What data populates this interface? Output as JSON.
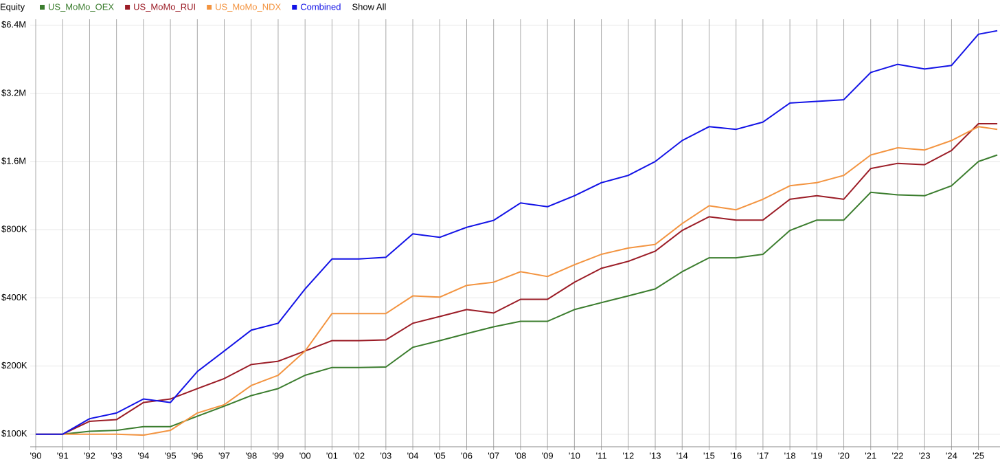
{
  "chart_data": {
    "type": "line",
    "ylabel": "Equity",
    "show_all_label": "Show All",
    "log_scale": true,
    "grid": true,
    "legend": "top",
    "x": [
      1990,
      1991,
      1992,
      1993,
      1994,
      1995,
      1996,
      1997,
      1998,
      1999,
      2000,
      2001,
      2002,
      2003,
      2004,
      2005,
      2006,
      2007,
      2008,
      2009,
      2010,
      2011,
      2012,
      2013,
      2014,
      2015,
      2016,
      2017,
      2018,
      2019,
      2020,
      2021,
      2022,
      2023,
      2024,
      2025,
      2025.7
    ],
    "xlim": [
      1990,
      2025.8
    ],
    "xticks": [
      {
        "value": 1990,
        "label": "'90"
      },
      {
        "value": 1991,
        "label": "'91"
      },
      {
        "value": 1992,
        "label": "'92"
      },
      {
        "value": 1993,
        "label": "'93"
      },
      {
        "value": 1994,
        "label": "'94"
      },
      {
        "value": 1995,
        "label": "'95"
      },
      {
        "value": 1996,
        "label": "'96"
      },
      {
        "value": 1997,
        "label": "'97"
      },
      {
        "value": 1998,
        "label": "'98"
      },
      {
        "value": 1999,
        "label": "'99"
      },
      {
        "value": 2000,
        "label": "'00"
      },
      {
        "value": 2001,
        "label": "'01"
      },
      {
        "value": 2002,
        "label": "'02"
      },
      {
        "value": 2003,
        "label": "'03"
      },
      {
        "value": 2004,
        "label": "'04"
      },
      {
        "value": 2005,
        "label": "'05"
      },
      {
        "value": 2006,
        "label": "'06"
      },
      {
        "value": 2007,
        "label": "'07"
      },
      {
        "value": 2008,
        "label": "'08"
      },
      {
        "value": 2009,
        "label": "'09"
      },
      {
        "value": 2010,
        "label": "'10"
      },
      {
        "value": 2011,
        "label": "'11"
      },
      {
        "value": 2012,
        "label": "'12"
      },
      {
        "value": 2013,
        "label": "'13"
      },
      {
        "value": 2014,
        "label": "'14"
      },
      {
        "value": 2015,
        "label": "'15"
      },
      {
        "value": 2016,
        "label": "'16"
      },
      {
        "value": 2017,
        "label": "'17"
      },
      {
        "value": 2018,
        "label": "'18"
      },
      {
        "value": 2019,
        "label": "'19"
      },
      {
        "value": 2020,
        "label": "'20"
      },
      {
        "value": 2021,
        "label": "'21"
      },
      {
        "value": 2022,
        "label": "'22"
      },
      {
        "value": 2023,
        "label": "'23"
      },
      {
        "value": 2024,
        "label": "'24"
      },
      {
        "value": 2025,
        "label": "'25"
      }
    ],
    "ylim": [
      88000,
      6800000
    ],
    "yticks": [
      {
        "value": 100000,
        "label": "$100K"
      },
      {
        "value": 200000,
        "label": "$200K"
      },
      {
        "value": 400000,
        "label": "$400K"
      },
      {
        "value": 800000,
        "label": "$800K"
      },
      {
        "value": 1600000,
        "label": "$1.6M"
      },
      {
        "value": 3200000,
        "label": "$3.2M"
      },
      {
        "value": 6400000,
        "label": "$6.4M"
      }
    ],
    "series": [
      {
        "name": "US_MoMo_OEX",
        "color": "#3b7d2e",
        "values": [
          100000,
          100000,
          103000,
          104000,
          108000,
          108000,
          120000,
          133000,
          148000,
          159000,
          182000,
          197000,
          197000,
          198000,
          242000,
          259000,
          278000,
          298000,
          315000,
          315000,
          355000,
          381000,
          408000,
          438000,
          522000,
          601000,
          601000,
          623000,
          794000,
          882000,
          882000,
          1170000,
          1140000,
          1130000,
          1250000,
          1600000,
          1710000
        ]
      },
      {
        "name": "US_MoMo_RUI",
        "color": "#9b1c26",
        "values": [
          100000,
          100000,
          114000,
          116000,
          138000,
          143000,
          159000,
          176000,
          203000,
          210000,
          233000,
          259000,
          259000,
          261000,
          309000,
          331000,
          355000,
          343000,
          394000,
          394000,
          469000,
          540000,
          580000,
          643000,
          794000,
          912000,
          882000,
          882000,
          1090000,
          1130000,
          1090000,
          1490000,
          1570000,
          1550000,
          1790000,
          2350000,
          2350000
        ]
      },
      {
        "name": "US_MoMo_NDX",
        "color": "#f39440",
        "values": [
          100000,
          100000,
          100000,
          100000,
          99000,
          104000,
          124000,
          135000,
          164000,
          182000,
          233000,
          341000,
          341000,
          341000,
          408000,
          403000,
          454000,
          469000,
          522000,
          497000,
          560000,
          623000,
          664000,
          689000,
          851000,
          1020000,
          980000,
          1090000,
          1250000,
          1290000,
          1390000,
          1710000,
          1840000,
          1800000,
          1980000,
          2280000,
          2220000
        ]
      },
      {
        "name": "Combined",
        "color": "#1212e6",
        "values": [
          100000,
          100000,
          117000,
          124000,
          143000,
          138000,
          189000,
          233000,
          288000,
          309000,
          438000,
          594000,
          594000,
          604000,
          767000,
          740000,
          820000,
          880000,
          1050000,
          1010000,
          1130000,
          1290000,
          1390000,
          1600000,
          1980000,
          2280000,
          2220000,
          2390000,
          2900000,
          2950000,
          3000000,
          3960000,
          4300000,
          4100000,
          4250000,
          5840000,
          6050000
        ]
      }
    ]
  }
}
